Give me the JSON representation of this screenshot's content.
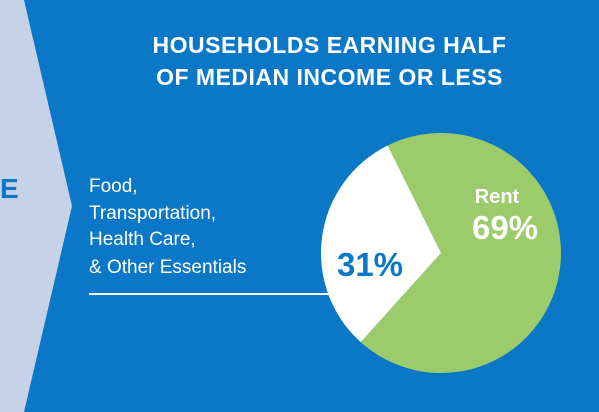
{
  "chart_data": {
    "type": "pie",
    "title_lines": [
      "HOUSEHOLDS EARNING HALF",
      "OF MEDIAN INCOME OR LESS"
    ],
    "slices": [
      {
        "name": "Rent",
        "value": 69,
        "label": "69%",
        "color": "#9ccb6b"
      },
      {
        "name": "Food, Transportation, Health Care, & Other Essentials",
        "value": 31,
        "label": "31%",
        "color": "#ffffff"
      }
    ],
    "callout_lines": [
      "Food,",
      "Transportation,",
      "Health Care,",
      "& Other Essentials"
    ]
  },
  "left_panel": {
    "color": "#c5d2e8",
    "partial_letter": "E"
  },
  "colors": {
    "background": "#0a78c6",
    "accent_text": "#0a78c6",
    "white": "#ffffff"
  }
}
